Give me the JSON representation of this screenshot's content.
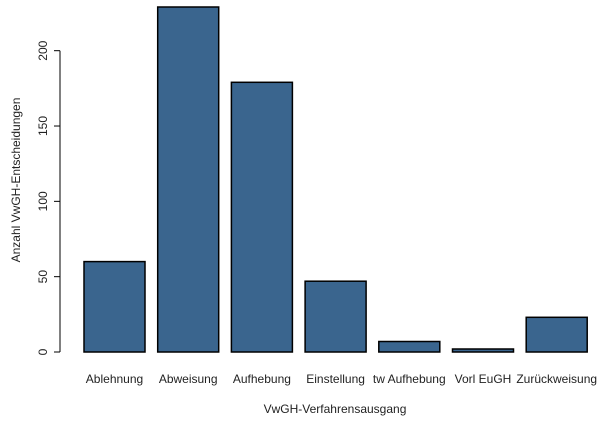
{
  "chart_data": {
    "type": "bar",
    "title": "",
    "xlabel": "VwGH-Verfahrensausgang",
    "ylabel": "Anzahl VwGH-Entscheidungen",
    "categories": [
      "Ablehnung",
      "Abweisung",
      "Aufhebung",
      "Einstellung",
      "tw Aufhebung",
      "Vorl EuGH",
      "Zurückweisung"
    ],
    "values": [
      60,
      229,
      179,
      47,
      7,
      2,
      23
    ],
    "ylim": [
      0,
      229
    ],
    "yticks": [
      0,
      50,
      100,
      150,
      200
    ],
    "bar_color": "#3a658e",
    "bar_stroke": "#000000",
    "grid": false,
    "legend": "none"
  }
}
